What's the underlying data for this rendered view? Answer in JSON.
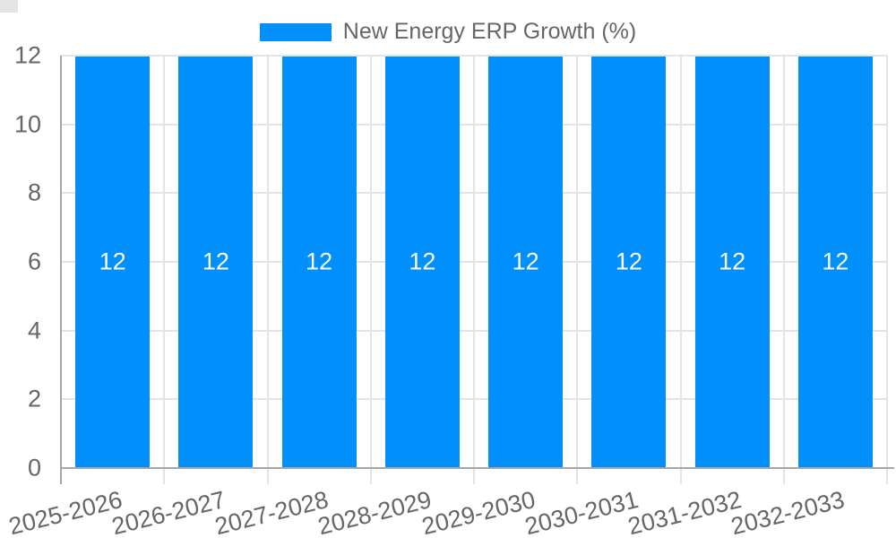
{
  "legend": {
    "label": "New Energy ERP Growth (%)"
  },
  "chart_data": {
    "type": "bar",
    "title": "",
    "xlabel": "",
    "ylabel": "",
    "categories": [
      "2025-2026",
      "2026-2027",
      "2027-2028",
      "2028-2029",
      "2029-2030",
      "2030-2031",
      "2031-2032",
      "2032-2033"
    ],
    "series": [
      {
        "name": "New Energy ERP Growth (%)",
        "values": [
          12,
          12,
          12,
          12,
          12,
          12,
          12,
          12
        ]
      }
    ],
    "data_labels": [
      "12",
      "12",
      "12",
      "12",
      "12",
      "12",
      "12",
      "12"
    ],
    "ylim": [
      0,
      12
    ],
    "yticks": [
      0,
      2,
      4,
      6,
      8,
      10,
      12
    ],
    "grid": true,
    "legend_position": "top",
    "x_label_rotation_deg": -14,
    "colors": {
      "bar": "#008FFB",
      "axis_text": "#666666",
      "data_label": "#FFFFFF",
      "gridline": "#E4E4E4",
      "axis_border": "#A6A6A6",
      "background": "#FFFFFF"
    }
  }
}
